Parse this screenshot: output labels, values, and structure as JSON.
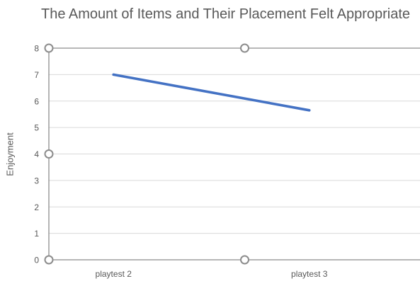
{
  "chart_data": {
    "type": "line",
    "title": "The Amount of Items and Their Placement Felt Appropriate",
    "xlabel": "",
    "ylabel": "Enjoyment",
    "categories": [
      "playtest 2",
      "playtest 3"
    ],
    "series": [
      {
        "values": [
          7,
          5.65
        ],
        "color": "#4472C4"
      }
    ],
    "ylim": [
      0,
      8
    ],
    "yticks": [
      "0",
      "1",
      "2",
      "3",
      "4",
      "5",
      "6",
      "7",
      "8"
    ],
    "grid": true,
    "legend": "none"
  }
}
